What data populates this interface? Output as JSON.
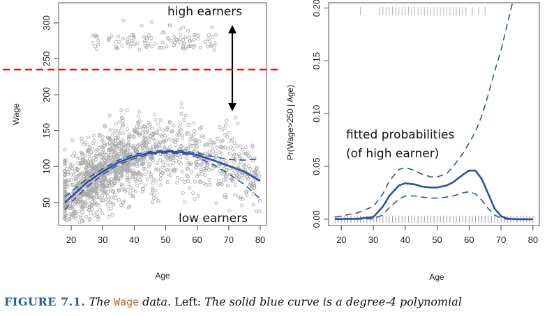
{
  "chart_data": [
    {
      "type": "scatter",
      "xlabel": "Age",
      "ylabel": "Wage",
      "xlim": [
        16,
        82
      ],
      "ylim": [
        18,
        328
      ],
      "xticks": [
        20,
        30,
        40,
        50,
        60,
        70,
        80
      ],
      "yticks": [
        50,
        100,
        150,
        200,
        250,
        300
      ],
      "threshold": 235,
      "series": [
        {
          "role": "points",
          "color": "#a9a9a9",
          "note": "scattered wages for ages 18-80, dense band 60-160, sparse high-earner band 260-310"
        },
        {
          "role": "fit",
          "color": "#2a52a3",
          "x": [
            18,
            20,
            25,
            30,
            35,
            40,
            45,
            50,
            55,
            60,
            65,
            70,
            75,
            80
          ],
          "y": [
            50,
            58,
            78,
            93,
            106,
            114,
            119,
            121,
            120,
            116,
            109,
            101,
            93,
            80
          ]
        },
        {
          "role": "band_upper",
          "color": "#2a52a3",
          "dash": true,
          "x": [
            18,
            20,
            25,
            30,
            35,
            40,
            45,
            50,
            55,
            60,
            65,
            70,
            75,
            80
          ],
          "y": [
            58,
            65,
            83,
            97,
            109,
            117,
            121,
            123,
            122,
            119,
            114,
            110,
            109,
            111
          ]
        },
        {
          "role": "band_lower",
          "color": "#2a52a3",
          "dash": true,
          "x": [
            18,
            20,
            25,
            30,
            35,
            40,
            45,
            50,
            55,
            60,
            65,
            70,
            75,
            80
          ],
          "y": [
            40,
            50,
            72,
            89,
            103,
            111,
            117,
            119,
            118,
            113,
            103,
            90,
            75,
            55
          ]
        }
      ],
      "annotations": {
        "high": "high earners",
        "low": "low earners"
      }
    },
    {
      "type": "line",
      "xlabel": "Age",
      "ylabel": "Pr(Wage>250 | Age)",
      "xlim": [
        16,
        82
      ],
      "ylim": [
        -0.006,
        0.205
      ],
      "xticks": [
        20,
        30,
        40,
        50,
        60,
        70,
        80
      ],
      "yticks": [
        0.0,
        0.05,
        0.1,
        0.15,
        0.2
      ],
      "ytick_labels": [
        "0.00",
        "0.05",
        "0.10",
        "0.15",
        "0.20"
      ],
      "series": [
        {
          "role": "fit",
          "color": "#2a52a3",
          "x": [
            18,
            20,
            25,
            30,
            33,
            35,
            38,
            40,
            43,
            45,
            48,
            50,
            53,
            55,
            58,
            60,
            62,
            64,
            66,
            68,
            70,
            72,
            74,
            76,
            78,
            80
          ],
          "y": [
            0.0001,
            0.0002,
            0.0004,
            0.002,
            0.012,
            0.022,
            0.032,
            0.034,
            0.033,
            0.031,
            0.03,
            0.03,
            0.032,
            0.035,
            0.042,
            0.046,
            0.046,
            0.038,
            0.024,
            0.01,
            0.003,
            0.0005,
            0.0001,
            0.0,
            0.0,
            0.0
          ]
        },
        {
          "role": "band_upper",
          "color": "#2a52a3",
          "dash": true,
          "x": [
            18,
            20,
            25,
            30,
            33,
            35,
            38,
            40,
            43,
            45,
            48,
            50,
            53,
            55,
            58,
            60,
            62,
            64,
            66,
            68,
            70,
            72,
            74
          ],
          "y": [
            0.002,
            0.003,
            0.006,
            0.012,
            0.024,
            0.036,
            0.047,
            0.049,
            0.046,
            0.043,
            0.04,
            0.04,
            0.043,
            0.05,
            0.062,
            0.072,
            0.083,
            0.098,
            0.118,
            0.14,
            0.16,
            0.185,
            0.21
          ]
        },
        {
          "role": "band_lower",
          "color": "#2a52a3",
          "dash": true,
          "x": [
            18,
            20,
            25,
            30,
            33,
            35,
            38,
            40,
            43,
            45,
            48,
            50,
            53,
            55,
            58,
            60,
            62,
            64,
            66,
            68,
            70,
            72,
            74,
            76,
            78,
            80
          ],
          "y": [
            0.0,
            0.0,
            0.0,
            0.0003,
            0.004,
            0.011,
            0.019,
            0.022,
            0.022,
            0.021,
            0.02,
            0.02,
            0.021,
            0.022,
            0.025,
            0.026,
            0.024,
            0.018,
            0.01,
            0.004,
            0.001,
            0.0,
            0.0,
            0.0,
            0.0,
            0.0
          ]
        }
      ],
      "rugs": {
        "top_color": "#b0b0b0",
        "bottom_color": "#9a9a9a",
        "top_ages": [
          26,
          32,
          33,
          34,
          35,
          36,
          37,
          38,
          39,
          40,
          41,
          42,
          43,
          44,
          45,
          46,
          47,
          48,
          49,
          50,
          51,
          52,
          53,
          54,
          55,
          56,
          57,
          58,
          59,
          61,
          63,
          65
        ],
        "bottom_from": 18,
        "bottom_to": 80
      },
      "annotations": {
        "line1": "fitted probabilities",
        "line2": "(of high earner)"
      }
    }
  ],
  "caption": {
    "label": "FIGURE 7.1.",
    "title": " The ",
    "dataword": "Wage",
    "after_data": " data.",
    "left": " Left: ",
    "italic": "The solid blue curve is a degree-4 polynomial"
  }
}
